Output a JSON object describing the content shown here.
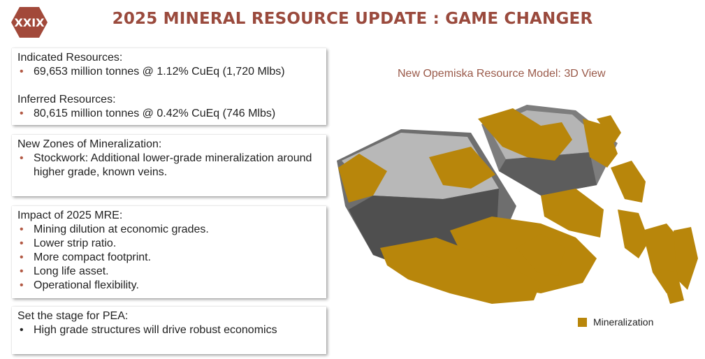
{
  "header": {
    "logo_text": "XXIX",
    "title": "2025 MINERAL RESOURCE UPDATE : GAME CHANGER"
  },
  "cards": {
    "resources": {
      "indicated_head": "Indicated Resources:",
      "indicated_item": "69,653 million tonnes @ 1.12% CuEq (1,720 Mlbs)",
      "inferred_head": "Inferred Resources:",
      "inferred_item": "80,615 million tonnes @ 0.42% CuEq (746 Mlbs)"
    },
    "zones": {
      "head": "New Zones of Mineralization:",
      "items": [
        "Stockwork:  Additional lower-grade mineralization around higher grade, known veins."
      ]
    },
    "impact": {
      "head": "Impact of 2025 MRE:",
      "items": [
        "Mining dilution at economic grades.",
        "Lower strip ratio.",
        "More compact footprint.",
        "Long life asset.",
        "Operational flexibility."
      ]
    },
    "pea": {
      "head": "Set the stage for PEA:",
      "items": [
        "High grade structures will drive robust economics"
      ]
    }
  },
  "model": {
    "caption": "New Opemiska Resource Model:  3D View",
    "legend_label": "Mineralization",
    "legend_color": "#b8860b",
    "pit_color": "#8e8e8e",
    "accent_color": "#9a4a3d"
  }
}
